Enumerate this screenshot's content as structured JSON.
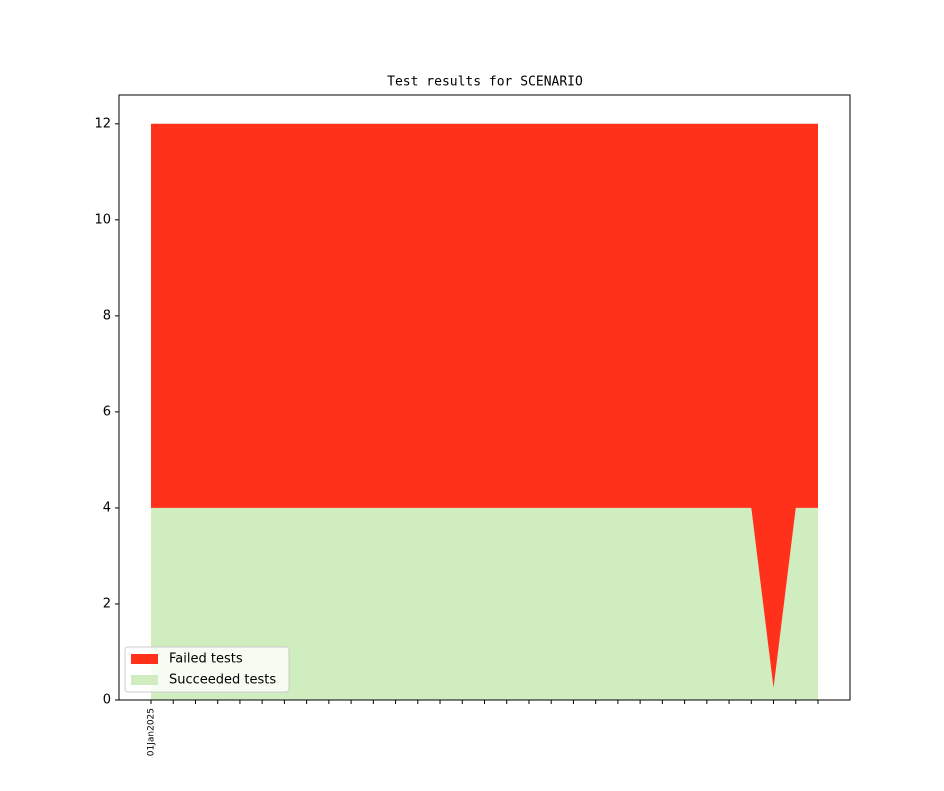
{
  "chart_data": {
    "type": "stacked_area",
    "title": "Test results for SCENARIO",
    "categories": [
      "01Jan2025",
      null,
      null,
      null,
      null,
      null,
      null,
      null,
      null,
      null,
      null,
      null,
      null,
      null,
      null,
      null,
      null,
      null,
      null,
      null,
      null,
      null,
      null,
      null,
      null,
      null,
      null,
      null,
      null,
      null,
      null
    ],
    "series": [
      {
        "name": "Failed tests",
        "color": "#ff311a",
        "values": [
          8,
          8,
          8,
          8,
          8,
          8,
          8,
          8,
          8,
          8,
          8,
          8,
          8,
          8,
          8,
          8,
          8,
          8,
          8,
          8,
          8,
          8,
          8,
          8,
          8,
          8,
          8,
          8,
          11.75,
          8,
          8
        ]
      },
      {
        "name": "Succeeded tests",
        "color": "#d0edbf",
        "values": [
          4,
          4,
          4,
          4,
          4,
          4,
          4,
          4,
          4,
          4,
          4,
          4,
          4,
          4,
          4,
          4,
          4,
          4,
          4,
          4,
          4,
          4,
          4,
          4,
          4,
          4,
          4,
          4,
          0.25,
          4,
          4
        ]
      }
    ],
    "ylim": [
      0,
      12.6
    ],
    "yticks": [
      0,
      2,
      4,
      6,
      8,
      10,
      12
    ],
    "legend": "lower left"
  }
}
